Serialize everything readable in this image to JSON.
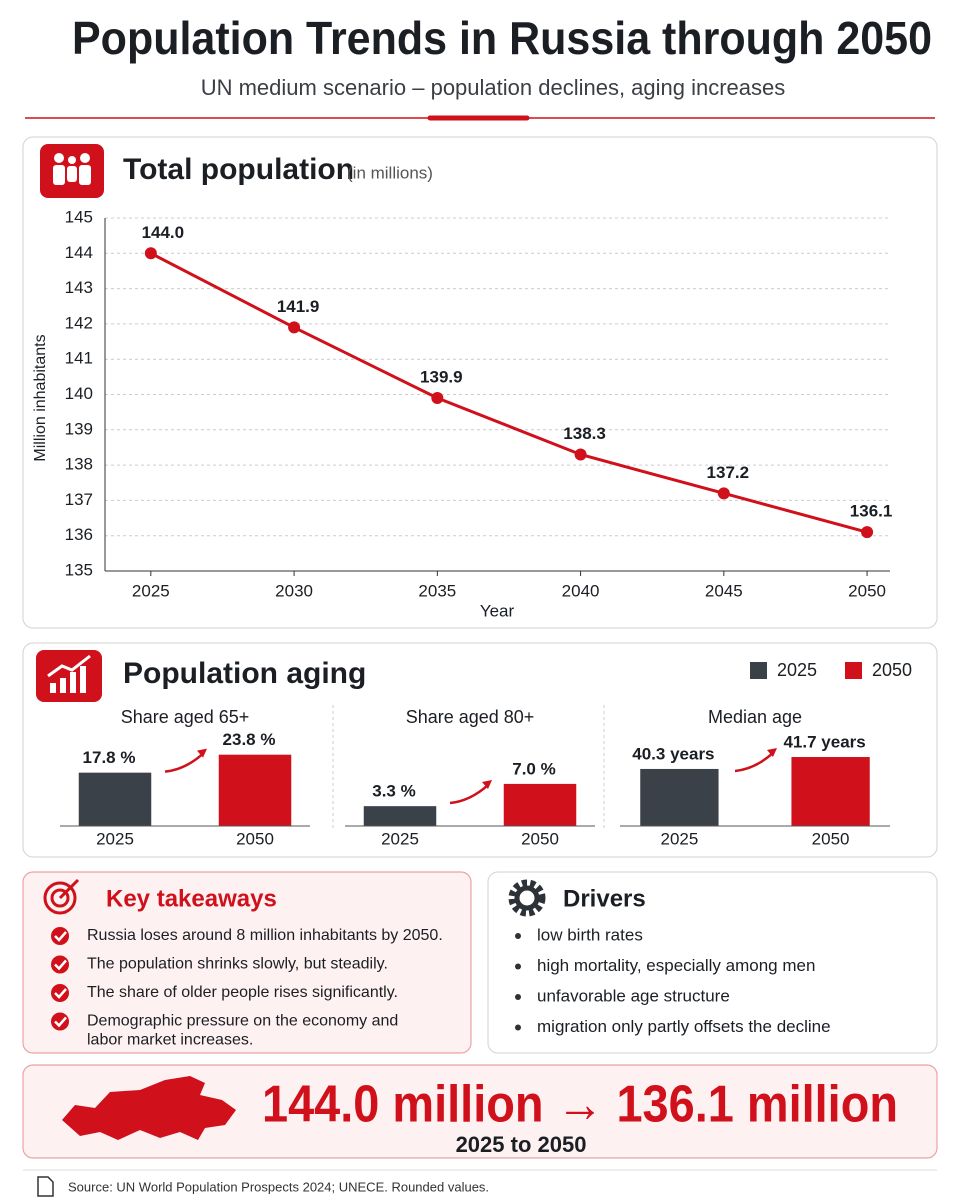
{
  "header": {
    "title": "Population Trends in Russia through 2050",
    "subtitle": "UN medium scenario – population declines, aging increases"
  },
  "chart_data": [
    {
      "type": "line",
      "title": "Total population",
      "subtitle": "(in millions)",
      "x": [
        2025,
        2030,
        2035,
        2040,
        2045,
        2050
      ],
      "series": [
        {
          "color": "#d0101a",
          "values": [
            144.0,
            141.9,
            139.9,
            138.3,
            137.2,
            136.1
          ],
          "value_labels": [
            "144.0",
            "141.9",
            "139.9",
            "138.3",
            "137.2",
            "136.1"
          ]
        }
      ],
      "xlabel": "Year",
      "ylabel": "Million inhabitants",
      "xlim": [
        2023.4,
        2050.8
      ],
      "xticks": [
        2025,
        2030,
        2035,
        2040,
        2045,
        2050
      ],
      "ylim": [
        135,
        145
      ],
      "yticks": [
        135,
        136,
        137,
        138,
        139,
        140,
        141,
        142,
        143,
        144,
        145
      ],
      "grid": true
    },
    {
      "type": "bar",
      "title": "Share aged 65+",
      "categories": [
        "2025",
        "2050"
      ],
      "values": [
        17.8,
        23.8
      ],
      "value_labels": [
        "17.8 %",
        "23.8 %"
      ],
      "colors": [
        "#3b4148",
        "#d0101a"
      ],
      "ylim": [
        0,
        28.7
      ]
    },
    {
      "type": "bar",
      "title": "Share aged 80+",
      "categories": [
        "2025",
        "2050"
      ],
      "values": [
        3.3,
        7.0
      ],
      "value_labels": [
        "3.3 %",
        "7.0 %"
      ],
      "colors": [
        "#3b4148",
        "#d0101a"
      ],
      "ylim": [
        0,
        14.3
      ]
    },
    {
      "type": "bar",
      "title": "Median age",
      "categories": [
        "2025",
        "2050"
      ],
      "values": [
        40.3,
        41.7
      ],
      "value_labels": [
        "40.3 years",
        "41.7 years"
      ],
      "colors": [
        "#3b4148",
        "#d0101a"
      ],
      "ylim": [
        33.6,
        43.7
      ]
    }
  ],
  "aging": {
    "title": "Population aging",
    "legend": [
      {
        "label": "2025",
        "color": "#3b4148"
      },
      {
        "label": "2050",
        "color": "#d0101a"
      }
    ]
  },
  "takeaways": {
    "title": "Key takeaways",
    "items": [
      "Russia loses around 8 million inhabitants by 2050.",
      "The population shrinks slowly, but steadily.",
      "The share of older people rises significantly.",
      [
        "Demographic pressure on the economy and",
        "labor market increases."
      ]
    ]
  },
  "drivers": {
    "title": "Drivers",
    "items": [
      "low birth rates",
      "high mortality, especially among men",
      "unfavorable age structure",
      "migration only partly offsets the decline"
    ]
  },
  "summary": {
    "headline": "144.0 million → 136.1 million",
    "period": "2025 to 2050"
  },
  "source": "Source: UN World Population Prospects 2024; UNECE. Rounded values."
}
